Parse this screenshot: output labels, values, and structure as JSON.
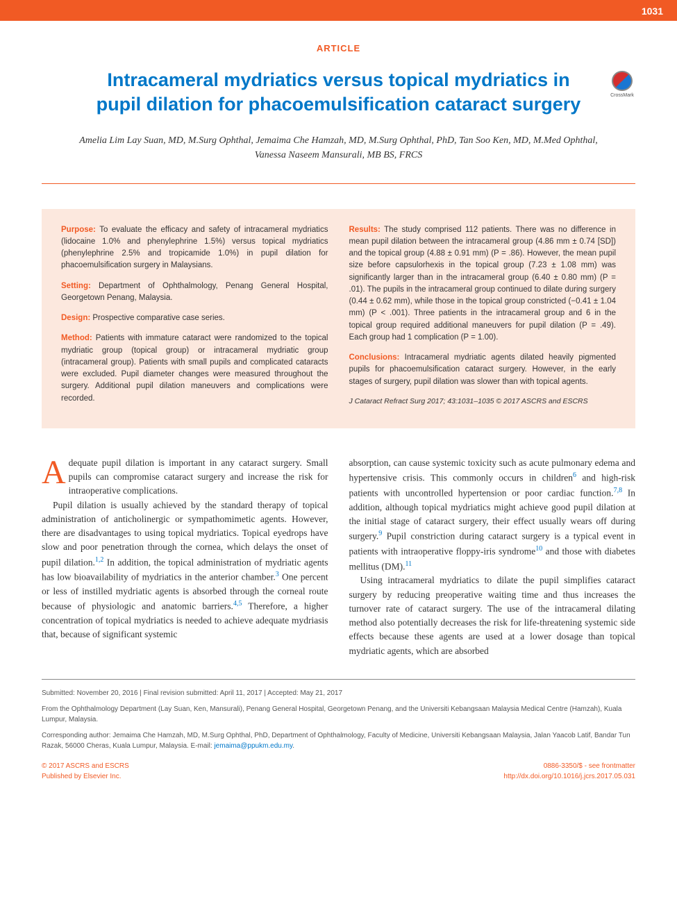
{
  "page_number": "1031",
  "article_type": "ARTICLE",
  "title": "Intracameral mydriatics versus topical mydriatics in pupil dilation for phacoemulsification cataract surgery",
  "authors": "Amelia Lim Lay Suan, MD, M.Surg Ophthal, Jemaima Che Hamzah, MD, M.Surg Ophthal, PhD, Tan Soo Ken, MD, M.Med Ophthal, Vanessa Naseem Mansurali, MB BS, FRCS",
  "crossmark_label": "CrossMark",
  "abstract": {
    "purpose": {
      "heading": "Purpose:",
      "text": " To evaluate the efficacy and safety of intracameral mydriatics (lidocaine 1.0% and phenylephrine 1.5%) versus topical mydriatics (phenylephrine 2.5% and tropicamide 1.0%) in pupil dilation for phacoemulsification surgery in Malaysians."
    },
    "setting": {
      "heading": "Setting:",
      "text": " Department of Ophthalmology, Penang General Hospital, Georgetown Penang, Malaysia."
    },
    "design": {
      "heading": "Design:",
      "text": " Prospective comparative case series."
    },
    "method": {
      "heading": "Method:",
      "text": " Patients with immature cataract were randomized to the topical mydriatic group (topical group) or intracameral mydriatic group (intracameral group). Patients with small pupils and complicated cataracts were excluded. Pupil diameter changes were measured throughout the surgery. Additional pupil dilation maneuvers and complications were recorded."
    },
    "results": {
      "heading": "Results:",
      "text": " The study comprised 112 patients. There was no difference in mean pupil dilation between the intracameral group (4.86 mm ± 0.74 [SD]) and the topical group (4.88 ± 0.91 mm) (P = .86). However, the mean pupil size before capsulorhexis in the topical group (7.23 ± 1.08 mm) was significantly larger than in the intracameral group (6.40 ± 0.80 mm) (P = .01). The pupils in the intracameral group continued to dilate during surgery (0.44 ± 0.62 mm), while those in the topical group constricted (−0.41 ± 1.04 mm) (P < .001). Three patients in the intracameral group and 6 in the topical group required additional maneuvers for pupil dilation (P = .49). Each group had 1 complication (P = 1.00)."
    },
    "conclusions": {
      "heading": "Conclusions:",
      "text": " Intracameral mydriatic agents dilated heavily pigmented pupils for phacoemulsification cataract surgery. However, in the early stages of surgery, pupil dilation was slower than with topical agents."
    },
    "citation": "J Cataract Refract Surg 2017; 43:1031–1035 © 2017 ASCRS and ESCRS"
  },
  "body": {
    "col1": {
      "p1_drop": "A",
      "p1": "dequate pupil dilation is important in any cataract surgery. Small pupils can compromise cataract surgery and increase the risk for intraoperative complications.",
      "p2_a": "Pupil dilation is usually achieved by the standard therapy of topical administration of anticholinergic or sympathomimetic agents. However, there are disadvantages to using topical mydriatics. Topical eyedrops have slow and poor penetration through the cornea, which delays the onset of pupil dilation.",
      "p2_ref1": "1,2",
      "p2_b": " In addition, the topical administration of mydriatic agents has low bioavailability of mydriatics in the anterior chamber.",
      "p2_ref2": "3",
      "p2_c": " One percent or less of instilled mydriatic agents is absorbed through the corneal route because of physiologic and anatomic barriers.",
      "p2_ref3": "4,5",
      "p2_d": " Therefore, a higher concentration of topical mydriatics is needed to achieve adequate mydriasis that, because of significant systemic"
    },
    "col2": {
      "p1_a": "absorption, can cause systemic toxicity such as acute pulmonary edema and hypertensive crisis. This commonly occurs in children",
      "p1_ref1": "6",
      "p1_b": " and high-risk patients with uncontrolled hypertension or poor cardiac function.",
      "p1_ref2": "7,8",
      "p1_c": " In addition, although topical mydriatics might achieve good pupil dilation at the initial stage of cataract surgery, their effect usually wears off during surgery.",
      "p1_ref3": "9",
      "p1_d": " Pupil constriction during cataract surgery is a typical event in patients with intraoperative floppy-iris syndrome",
      "p1_ref4": "10",
      "p1_e": " and those with diabetes mellitus (DM).",
      "p1_ref5": "11",
      "p2": "Using intracameral mydriatics to dilate the pupil simplifies cataract surgery by reducing preoperative waiting time and thus increases the turnover rate of cataract surgery. The use of the intracameral dilating method also potentially decreases the risk for life-threatening systemic side effects because these agents are used at a lower dosage than topical mydriatic agents, which are absorbed"
    }
  },
  "footer": {
    "submitted": "Submitted: November 20, 2016 | Final revision submitted: April 11, 2017 | Accepted: May 21, 2017",
    "affiliations": "From the Ophthalmology Department (Lay Suan, Ken, Mansurali), Penang General Hospital, Georgetown Penang, and the Universiti Kebangsaan Malaysia Medical Centre (Hamzah), Kuala Lumpur, Malaysia.",
    "corresponding_a": "Corresponding author: Jemaima Che Hamzah, MD, M.Surg Ophthal, PhD, Department of Ophthalmology, Faculty of Medicine, Universiti Kebangsaan Malaysia, Jalan Yaacob Latif, Bandar Tun Razak, 56000 Cheras, Kuala Lumpur, Malaysia. E-mail: ",
    "email": "jemaima@ppukm.edu.my",
    "corresponding_b": ".",
    "copyright_left_1": "© 2017 ASCRS and ESCRS",
    "copyright_left_2": "Published by Elsevier Inc.",
    "copyright_right_1": "0886-3350/$ - see frontmatter",
    "copyright_right_2": "http://dx.doi.org/10.1016/j.jcrs.2017.05.031"
  },
  "colors": {
    "accent": "#f15a24",
    "title_blue": "#0077c8",
    "abstract_bg": "#fce8de",
    "body_text": "#333333",
    "footer_text": "#555555"
  }
}
